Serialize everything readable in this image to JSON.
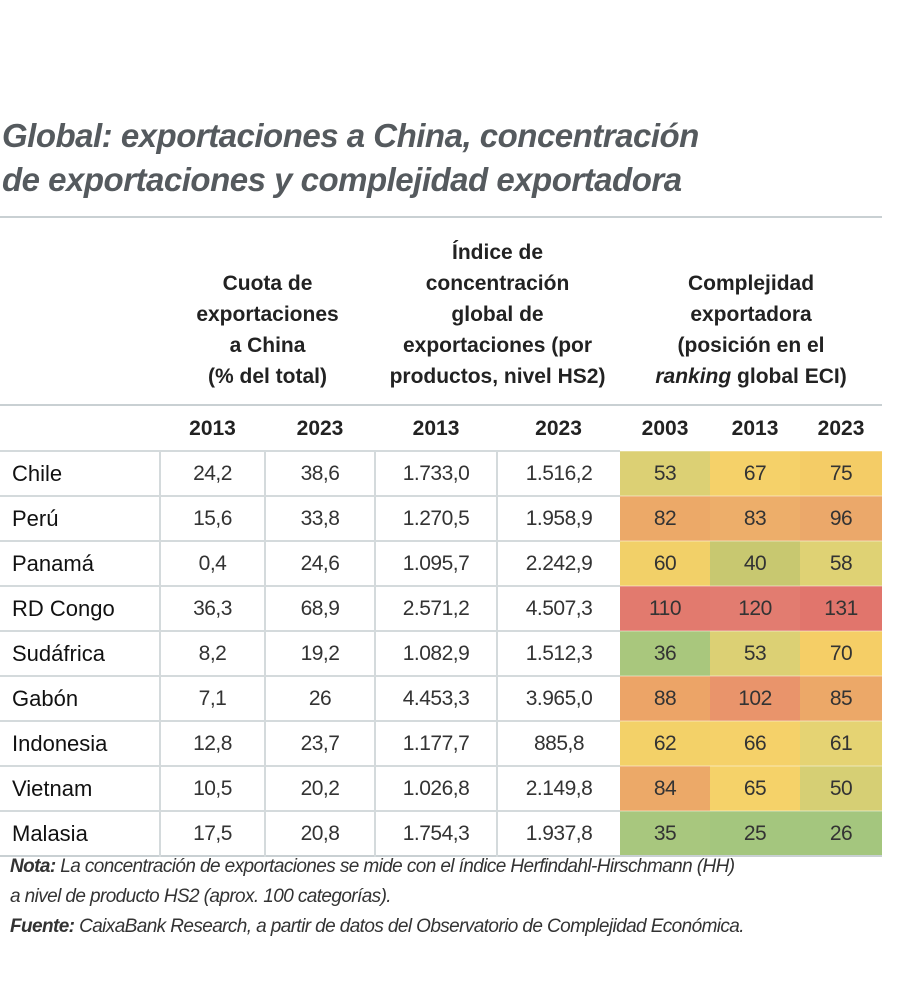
{
  "title_line1": "Global: exportaciones a China, concentración",
  "title_line2": "de exportaciones y complejidad exportadora",
  "headers": {
    "group1": [
      "Cuota de",
      "exportaciones",
      "a China",
      "(% del total)"
    ],
    "group2": [
      "Índice de",
      "concentración",
      "global de",
      "exportaciones (por",
      "productos, nivel HS2)"
    ],
    "group3_line1": "Complejidad",
    "group3_line2": "exportadora",
    "group3_line3": "(posición en el",
    "group3_line4_italic": "ranking",
    "group3_line4_rest": " global ECI)",
    "years": [
      "2013",
      "2023",
      "2013",
      "2023",
      "2003",
      "2013",
      "2023"
    ]
  },
  "rows": [
    {
      "country": "Chile",
      "values": [
        "24,2",
        "38,6",
        "1.733,0",
        "1.516,2"
      ],
      "eci": [
        "53",
        "67",
        "75"
      ],
      "colors": [
        "#dcd074",
        "#f5d169",
        "#f4cc66"
      ]
    },
    {
      "country": "Perú",
      "values": [
        "15,6",
        "33,8",
        "1.270,5",
        "1.958,9"
      ],
      "eci": [
        "82",
        "83",
        "96"
      ],
      "colors": [
        "#eca968",
        "#edae6a",
        "#eba86a"
      ]
    },
    {
      "country": "Panamá",
      "values": [
        "0,4",
        "24,6",
        "1.095,7",
        "2.242,9"
      ],
      "eci": [
        "60",
        "40",
        "58"
      ],
      "colors": [
        "#f2d068",
        "#c8c870",
        "#dfd274"
      ]
    },
    {
      "country": "RD Congo",
      "values": [
        "36,3",
        "68,9",
        "2.571,2",
        "4.507,3"
      ],
      "eci": [
        "110",
        "120",
        "131"
      ],
      "colors": [
        "#e27a6e",
        "#e27c70",
        "#e1756c"
      ]
    },
    {
      "country": "Sudáfrica",
      "values": [
        "8,2",
        "19,2",
        "1.082,9",
        "1.512,3"
      ],
      "eci": [
        "36",
        "53",
        "70"
      ],
      "colors": [
        "#a9c77d",
        "#dcd074",
        "#f5ce66"
      ]
    },
    {
      "country": "Gabón",
      "values": [
        "7,1",
        "26",
        "4.453,3",
        "3.965,0"
      ],
      "eci": [
        "88",
        "102",
        "85"
      ],
      "colors": [
        "#eca467",
        "#e9946b",
        "#eca868"
      ]
    },
    {
      "country": "Indonesia",
      "values": [
        "12,8",
        "23,7",
        "1.177,7",
        "885,8"
      ],
      "eci": [
        "62",
        "66",
        "61"
      ],
      "colors": [
        "#f3d168",
        "#f5d169",
        "#e5d373"
      ]
    },
    {
      "country": "Vietnam",
      "values": [
        "10,5",
        "20,2",
        "1.026,8",
        "2.149,8"
      ],
      "eci": [
        "84",
        "65",
        "50"
      ],
      "colors": [
        "#eca968",
        "#f5d269",
        "#d6cf74"
      ]
    },
    {
      "country": "Malasia",
      "values": [
        "17,5",
        "20,8",
        "1.754,3",
        "1.937,8"
      ],
      "eci": [
        "35",
        "25",
        "26"
      ],
      "colors": [
        "#a8c77e",
        "#a4c67e",
        "#a4c67e"
      ]
    }
  ],
  "note": {
    "label": "Nota:",
    "text": " La concentración de exportaciones se mide con el índice Herfindahl-Hirschmann (HH)",
    "text2": "a nivel de producto HS2 (aprox. 100 categorías)."
  },
  "source": {
    "label": "Fuente:",
    "text": " CaixaBank Research, a partir de datos del Observatorio de Complejidad Económica."
  }
}
